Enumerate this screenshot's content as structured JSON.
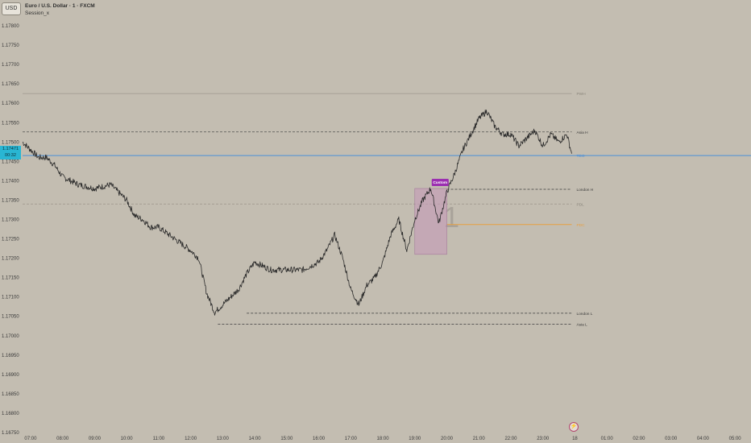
{
  "header": {
    "currency_button": "USD",
    "title": "Euro / U.S. Dollar · 1 · FXCM",
    "indicator": "Session_x"
  },
  "price_badge": {
    "price": "1.17471",
    "countdown": "00:32"
  },
  "icons": {
    "flash": "lightning-icon"
  },
  "colors": {
    "background": "#c3bdb1",
    "candle": "#2a2a2a",
    "current_price_line": "#4a90d9",
    "session_line": "#3a3a3a",
    "orange_line": "#e8a040",
    "custom_box": "#c49ab8",
    "custom_label": "#9b2fb0"
  },
  "chart_data": {
    "type": "line",
    "title": "",
    "xlabel": "",
    "ylabel": "",
    "x_ticks": [
      "07:00",
      "08:00",
      "09:00",
      "10:00",
      "11:00",
      "12:00",
      "13:00",
      "14:00",
      "15:00",
      "16:00",
      "17:00",
      "18:00",
      "19:00",
      "20:00",
      "21:00",
      "22:00",
      "23:00",
      "18",
      "01:00",
      "02:00",
      "03:00",
      "04:00",
      "05:00"
    ],
    "y_ticks": [
      "1.17800",
      "1.17750",
      "1.17700",
      "1.17650",
      "1.17600",
      "1.17550",
      "1.17500",
      "1.17450",
      "1.17400",
      "1.17350",
      "1.17300",
      "1.17250",
      "1.17200",
      "1.17150",
      "1.17100",
      "1.17050",
      "1.17000",
      "1.16950",
      "1.16900",
      "1.16850",
      "1.16800",
      "1.16750"
    ],
    "ylim": [
      1.1675,
      1.1785
    ],
    "xlim_hours": [
      6.75,
      29.5
    ],
    "series": [
      {
        "x": [
          6.75,
          7.0,
          7.25,
          7.5,
          7.75,
          8.0,
          8.5,
          9.0,
          9.5,
          10.0,
          10.25,
          10.5,
          10.75,
          11.0,
          11.5,
          12.0,
          12.25,
          12.5,
          12.75,
          13.0,
          13.25,
          13.5,
          13.75,
          14.0,
          14.5,
          15.0,
          15.5,
          16.0,
          16.25,
          16.5,
          16.75,
          17.0,
          17.25,
          17.5,
          17.75,
          18.0,
          18.25,
          18.5,
          18.75,
          19.0,
          19.25,
          19.5,
          19.75,
          20.0,
          20.25,
          20.5,
          20.75,
          21.0,
          21.25,
          21.5,
          21.75,
          22.0,
          22.25,
          22.5,
          22.75,
          23.0,
          23.25,
          23.5,
          23.75,
          23.9
        ],
        "y": [
          1.175,
          1.1748,
          1.1746,
          1.1746,
          1.1744,
          1.1741,
          1.1739,
          1.1738,
          1.1739,
          1.1735,
          1.1731,
          1.173,
          1.1728,
          1.1728,
          1.1725,
          1.1722,
          1.172,
          1.1711,
          1.1706,
          1.1708,
          1.171,
          1.1712,
          1.1716,
          1.1719,
          1.1717,
          1.1717,
          1.1717,
          1.1719,
          1.1722,
          1.1726,
          1.172,
          1.1712,
          1.1708,
          1.1713,
          1.1715,
          1.1719,
          1.1726,
          1.173,
          1.1722,
          1.173,
          1.1735,
          1.1738,
          1.1729,
          1.1737,
          1.1742,
          1.1748,
          1.1752,
          1.1756,
          1.1758,
          1.1754,
          1.1752,
          1.1752,
          1.1749,
          1.1751,
          1.1753,
          1.1749,
          1.1752,
          1.175,
          1.1752,
          1.1747
        ]
      }
    ],
    "levels": [
      {
        "name": "PWH",
        "value": 1.17625,
        "style": "solid-faint",
        "x_start": 6.75,
        "x_end": 23.9
      },
      {
        "name": "Asia H",
        "value": 1.17526,
        "style": "dashed",
        "x_start": 6.75,
        "x_end": 23.9
      },
      {
        "name": "TDO",
        "value": 1.17465,
        "style": "solid-blue",
        "x_start": 6.75,
        "x_end": 23.9
      },
      {
        "name": "London H",
        "value": 1.17378,
        "style": "dashed",
        "x_start": 20.0,
        "x_end": 23.9
      },
      {
        "name": "PDL",
        "value": 1.1734,
        "style": "dashed-faint",
        "x_start": 6.75,
        "x_end": 23.9
      },
      {
        "name": "PDC",
        "value": 1.17287,
        "style": "solid-orange",
        "x_start": 20.0,
        "x_end": 23.9
      },
      {
        "name": "London L",
        "value": 1.17058,
        "style": "dashed",
        "x_start": 13.75,
        "x_end": 23.9
      },
      {
        "name": "Asia L",
        "value": 1.1703,
        "style": "dashed",
        "x_start": 12.85,
        "x_end": 23.9
      }
    ],
    "custom_session": {
      "label": "Custom",
      "x_start": 19.0,
      "x_end": 20.0,
      "y_low": 1.1721,
      "y_high": 1.1738
    },
    "watermark": "1"
  }
}
